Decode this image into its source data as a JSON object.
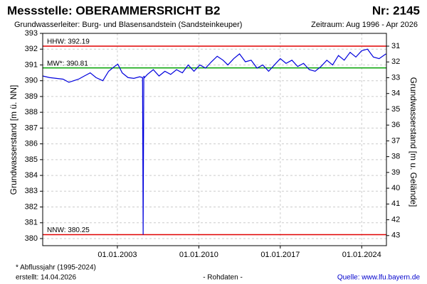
{
  "chart_data": {
    "type": "line",
    "title": "Messstelle: OBERAMMERSRICHT B2",
    "number": "Nr: 2145",
    "subtitle": "Grundwasserleiter:  Burg- und Blasensandstein (Sandsteinkeuper)",
    "period": "Zeitraum: Aug 1996 - Apr 2026",
    "ylabel": "Grundwasserstand [m ü. NN]",
    "y2label": "Grundwasserstand [m u. Gelände]",
    "footnote": "* Abflussjahr (1995-2024)",
    "created": "erstellt:  14.04.2026",
    "rawdata": "- Rohdaten -",
    "source": "Quelle: www.lfu.bayern.de",
    "color": "#0000dd",
    "grid": true,
    "xlim": [
      "1996-08-01",
      "2026-02-15"
    ],
    "xticks": [
      {
        "value": "2003-01-01",
        "label": "01.01.2003"
      },
      {
        "value": "2010-01-01",
        "label": "01.01.2010"
      },
      {
        "value": "2017-01-01",
        "label": "01.01.2017"
      },
      {
        "value": "2024-01-01",
        "label": "01.01.2024"
      }
    ],
    "ylim": [
      379.55,
      393
    ],
    "yticks": [
      380,
      381,
      382,
      383,
      384,
      385,
      386,
      387,
      388,
      389,
      390,
      391,
      392,
      393
    ],
    "y2lim": [
      43.64,
      30.19
    ],
    "y2ticks": [
      31,
      32,
      33,
      34,
      35,
      36,
      37,
      38,
      39,
      40,
      41,
      42,
      43
    ],
    "reference_lines": [
      {
        "label": "HHW: 392.19",
        "value": 392.19,
        "color": "#e00000"
      },
      {
        "label": "MW*: 390.81",
        "value": 390.81,
        "color": "#00a000"
      },
      {
        "label": "NNW: 380.25",
        "value": 380.25,
        "color": "#e00000"
      }
    ],
    "x": [
      "1996-08-01",
      "1997-03-01",
      "1997-10-01",
      "1998-05-01",
      "1998-11-01",
      "1999-04-01",
      "1999-09-01",
      "2000-03-01",
      "2000-09-01",
      "2001-03-01",
      "2001-10-01",
      "2002-04-01",
      "2002-10-01",
      "2003-01-15",
      "2003-06-01",
      "2003-12-01",
      "2004-06-01",
      "2004-12-01",
      "2005-03-01",
      "2005-03-20",
      "2005-04-10",
      "2005-05-01",
      "2005-08-01",
      "2006-02-01",
      "2006-08-01",
      "2007-02-01",
      "2007-08-01",
      "2008-02-01",
      "2008-08-01",
      "2009-02-01",
      "2009-08-01",
      "2010-02-01",
      "2010-08-01",
      "2011-02-01",
      "2011-08-01",
      "2012-02-01",
      "2012-07-01",
      "2013-01-01",
      "2013-07-01",
      "2014-01-01",
      "2014-07-01",
      "2015-01-01",
      "2015-07-01",
      "2016-01-01",
      "2016-07-01",
      "2017-01-01",
      "2017-07-01",
      "2018-01-01",
      "2018-07-01",
      "2019-01-01",
      "2019-07-01",
      "2020-01-01",
      "2020-07-01",
      "2021-01-01",
      "2021-07-01",
      "2022-01-01",
      "2022-07-01",
      "2023-01-01",
      "2023-07-01",
      "2024-01-01",
      "2024-07-01",
      "2025-01-01",
      "2025-07-01",
      "2026-02-01"
    ],
    "values": [
      390.3,
      390.2,
      390.15,
      390.1,
      389.9,
      390.0,
      390.1,
      390.3,
      390.5,
      390.2,
      390.0,
      390.6,
      390.9,
      391.05,
      390.5,
      390.2,
      390.15,
      390.25,
      390.2,
      380.25,
      390.3,
      390.2,
      390.4,
      390.7,
      390.3,
      390.6,
      390.4,
      390.7,
      390.5,
      391.0,
      390.6,
      391.0,
      390.8,
      391.2,
      391.55,
      391.3,
      391.0,
      391.4,
      391.7,
      391.2,
      391.3,
      390.8,
      391.0,
      390.6,
      391.0,
      391.4,
      391.1,
      391.3,
      390.9,
      391.1,
      390.7,
      390.6,
      390.9,
      391.3,
      391.0,
      391.6,
      391.3,
      391.8,
      391.5,
      391.9,
      392.0,
      391.5,
      391.4,
      391.7
    ]
  }
}
